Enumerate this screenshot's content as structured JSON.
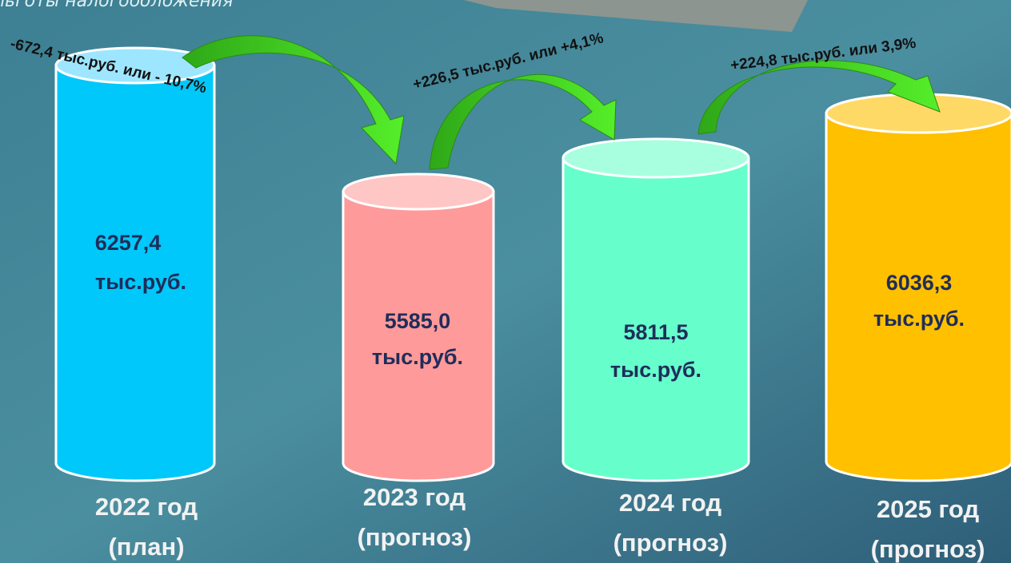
{
  "header": {
    "text": "льготы налогообложения"
  },
  "cylinders": [
    {
      "value": "6257,4",
      "unit": "тыс.руб.",
      "year": "2022 год",
      "note": "(план)"
    },
    {
      "value": "5585,0",
      "unit": "тыс.руб.",
      "year": "2023 год",
      "note": "(прогноз)"
    },
    {
      "value": "5811,5",
      "unit": "тыс.руб.",
      "year": "2024 год",
      "note": "(прогноз)"
    },
    {
      "value": "6036,3",
      "unit": "тыс.руб.",
      "year": "2025 год",
      "note": "(прогноз)"
    }
  ],
  "changes": [
    {
      "label": "-672,4 тыс.руб. или - 10,7%"
    },
    {
      "label": "+226,5 тыс.руб. или  +4,1%"
    },
    {
      "label": "+224,8 тыс.руб. или  3,9%"
    }
  ]
}
